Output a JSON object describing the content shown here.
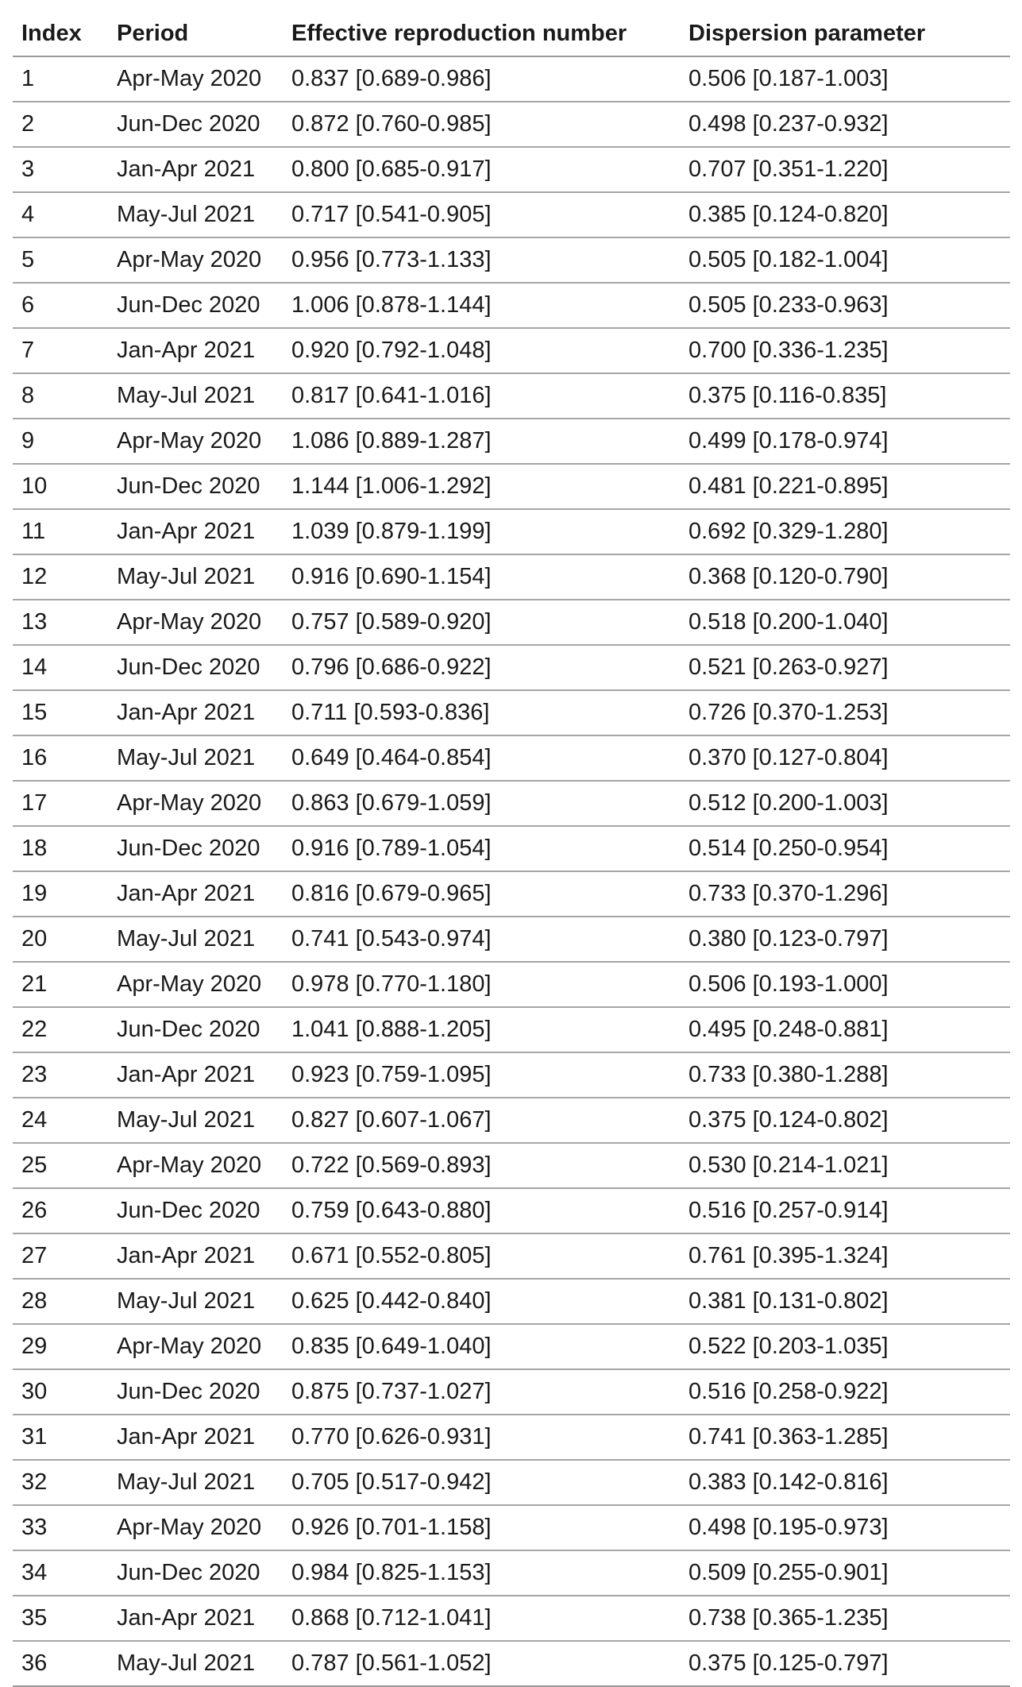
{
  "table": {
    "headers": [
      "Index",
      "Period",
      "Effective reproduction number",
      "Dispersion parameter"
    ],
    "rows": [
      [
        "1",
        "Apr-May 2020",
        "0.837 [0.689-0.986]",
        "0.506 [0.187-1.003]"
      ],
      [
        "2",
        "Jun-Dec 2020",
        "0.872 [0.760-0.985]",
        "0.498 [0.237-0.932]"
      ],
      [
        "3",
        "Jan-Apr 2021",
        "0.800 [0.685-0.917]",
        "0.707 [0.351-1.220]"
      ],
      [
        "4",
        "May-Jul 2021",
        "0.717 [0.541-0.905]",
        "0.385 [0.124-0.820]"
      ],
      [
        "5",
        "Apr-May 2020",
        "0.956 [0.773-1.133]",
        "0.505 [0.182-1.004]"
      ],
      [
        "6",
        "Jun-Dec 2020",
        "1.006 [0.878-1.144]",
        "0.505 [0.233-0.963]"
      ],
      [
        "7",
        "Jan-Apr 2021",
        "0.920 [0.792-1.048]",
        "0.700 [0.336-1.235]"
      ],
      [
        "8",
        "May-Jul 2021",
        "0.817 [0.641-1.016]",
        "0.375 [0.116-0.835]"
      ],
      [
        "9",
        "Apr-May 2020",
        "1.086 [0.889-1.287]",
        "0.499 [0.178-0.974]"
      ],
      [
        "10",
        "Jun-Dec 2020",
        "1.144 [1.006-1.292]",
        "0.481 [0.221-0.895]"
      ],
      [
        "11",
        "Jan-Apr 2021",
        "1.039 [0.879-1.199]",
        "0.692 [0.329-1.280]"
      ],
      [
        "12",
        "May-Jul 2021",
        "0.916 [0.690-1.154]",
        "0.368 [0.120-0.790]"
      ],
      [
        "13",
        "Apr-May 2020",
        "0.757 [0.589-0.920]",
        "0.518 [0.200-1.040]"
      ],
      [
        "14",
        "Jun-Dec 2020",
        "0.796 [0.686-0.922]",
        "0.521 [0.263-0.927]"
      ],
      [
        "15",
        "Jan-Apr 2021",
        "0.711 [0.593-0.836]",
        "0.726 [0.370-1.253]"
      ],
      [
        "16",
        "May-Jul 2021",
        "0.649 [0.464-0.854]",
        "0.370 [0.127-0.804]"
      ],
      [
        "17",
        "Apr-May 2020",
        "0.863 [0.679-1.059]",
        "0.512 [0.200-1.003]"
      ],
      [
        "18",
        "Jun-Dec 2020",
        "0.916 [0.789-1.054]",
        "0.514 [0.250-0.954]"
      ],
      [
        "19",
        "Jan-Apr 2021",
        "0.816 [0.679-0.965]",
        "0.733 [0.370-1.296]"
      ],
      [
        "20",
        "May-Jul 2021",
        "0.741 [0.543-0.974]",
        "0.380 [0.123-0.797]"
      ],
      [
        "21",
        "Apr-May 2020",
        "0.978 [0.770-1.180]",
        "0.506 [0.193-1.000]"
      ],
      [
        "22",
        "Jun-Dec 2020",
        "1.041 [0.888-1.205]",
        "0.495 [0.248-0.881]"
      ],
      [
        "23",
        "Jan-Apr 2021",
        "0.923 [0.759-1.095]",
        "0.733 [0.380-1.288]"
      ],
      [
        "24",
        "May-Jul 2021",
        "0.827 [0.607-1.067]",
        "0.375 [0.124-0.802]"
      ],
      [
        "25",
        "Apr-May 2020",
        "0.722 [0.569-0.893]",
        "0.530 [0.214-1.021]"
      ],
      [
        "26",
        "Jun-Dec 2020",
        "0.759 [0.643-0.880]",
        "0.516 [0.257-0.914]"
      ],
      [
        "27",
        "Jan-Apr 2021",
        "0.671 [0.552-0.805]",
        "0.761 [0.395-1.324]"
      ],
      [
        "28",
        "May-Jul 2021",
        "0.625 [0.442-0.840]",
        "0.381 [0.131-0.802]"
      ],
      [
        "29",
        "Apr-May 2020",
        "0.835 [0.649-1.040]",
        "0.522 [0.203-1.035]"
      ],
      [
        "30",
        "Jun-Dec 2020",
        "0.875 [0.737-1.027]",
        "0.516 [0.258-0.922]"
      ],
      [
        "31",
        "Jan-Apr 2021",
        "0.770 [0.626-0.931]",
        "0.741 [0.363-1.285]"
      ],
      [
        "32",
        "May-Jul 2021",
        "0.705 [0.517-0.942]",
        "0.383 [0.142-0.816]"
      ],
      [
        "33",
        "Apr-May 2020",
        "0.926 [0.701-1.158]",
        "0.498 [0.195-0.973]"
      ],
      [
        "34",
        "Jun-Dec 2020",
        "0.984 [0.825-1.153]",
        "0.509 [0.255-0.901]"
      ],
      [
        "35",
        "Jan-Apr 2021",
        "0.868 [0.712-1.041]",
        "0.738 [0.365-1.235]"
      ],
      [
        "36",
        "May-Jul 2021",
        "0.787 [0.561-1.052]",
        "0.375 [0.125-0.797]"
      ]
    ]
  }
}
